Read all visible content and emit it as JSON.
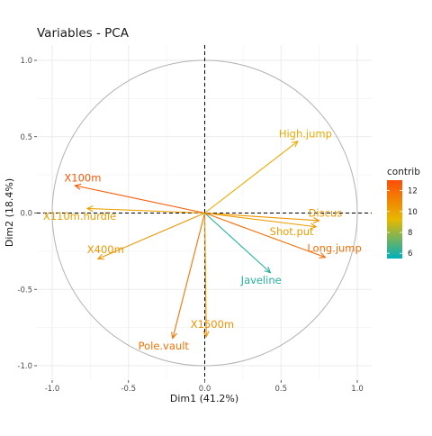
{
  "chart_data": {
    "type": "scatter",
    "subtype": "pca-variable-correlation-circle",
    "title": "Variables - PCA",
    "xlabel": "Dim1 (41.2%)",
    "ylabel": "Dim2 (18.4%)",
    "xlim": [
      -1.1,
      1.1
    ],
    "ylim": [
      -1.1,
      1.1
    ],
    "x_ticks": [
      -1.0,
      -0.5,
      0.0,
      0.5,
      1.0
    ],
    "x_tick_labels": [
      "-1.0",
      "-0.5",
      "0.0",
      "0.5",
      "1.0"
    ],
    "y_ticks": [
      -1.0,
      -0.5,
      0.0,
      0.5,
      1.0
    ],
    "y_tick_labels": [
      "-1.0",
      "-0.5",
      "0.0",
      "0.5",
      "1.0"
    ],
    "grid": true,
    "unit_circle": true,
    "legend": {
      "title": "contrib",
      "position": "right",
      "range": [
        5.5,
        13
      ],
      "ticks": [
        6,
        8,
        10,
        12
      ],
      "tick_labels": [
        "6",
        "8",
        "10",
        "12"
      ],
      "colors": [
        "#00AFBB",
        "#E7B800",
        "#FC4E07"
      ]
    },
    "variables": [
      {
        "name": "X100m",
        "x": -0.85,
        "y": 0.18,
        "contrib": 12.6
      },
      {
        "name": "Long.jump",
        "x": 0.79,
        "y": -0.29,
        "contrib": 11.9
      },
      {
        "name": "Shot.put",
        "x": 0.73,
        "y": -0.09,
        "contrib": 10.2
      },
      {
        "name": "High.jump",
        "x": 0.61,
        "y": 0.47,
        "contrib": 9.7
      },
      {
        "name": "X400m",
        "x": -0.7,
        "y": -0.3,
        "contrib": 10.4
      },
      {
        "name": "X110m.hurdle",
        "x": -0.77,
        "y": 0.03,
        "contrib": 10.1
      },
      {
        "name": "Discus",
        "x": 0.75,
        "y": -0.05,
        "contrib": 10.4
      },
      {
        "name": "Pole.vault",
        "x": -0.21,
        "y": -0.82,
        "contrib": 11.7
      },
      {
        "name": "Javeline",
        "x": 0.43,
        "y": -0.39,
        "contrib": 6.1
      },
      {
        "name": "X1500m",
        "x": 0.01,
        "y": -0.81,
        "contrib": 10.6
      }
    ],
    "labels": [
      {
        "name": "X100m",
        "lx": -0.8,
        "ly": 0.23,
        "anchor": "middle"
      },
      {
        "name": "Long.jump",
        "lx": 0.85,
        "ly": -0.23,
        "anchor": "middle"
      },
      {
        "name": "Shot.put",
        "lx": 0.57,
        "ly": -0.12,
        "anchor": "middle"
      },
      {
        "name": "High.jump",
        "lx": 0.66,
        "ly": 0.52,
        "anchor": "middle"
      },
      {
        "name": "X400m",
        "lx": -0.65,
        "ly": -0.24,
        "anchor": "middle"
      },
      {
        "name": "X110m.hurdle",
        "lx": -0.82,
        "ly": -0.02,
        "anchor": "middle"
      },
      {
        "name": "Discus",
        "lx": 0.79,
        "ly": 0.0,
        "anchor": "middle"
      },
      {
        "name": "Pole.vault",
        "lx": -0.27,
        "ly": -0.87,
        "anchor": "middle"
      },
      {
        "name": "Javeline",
        "lx": 0.37,
        "ly": -0.44,
        "anchor": "middle"
      },
      {
        "name": "X1500m",
        "lx": 0.05,
        "ly": -0.73,
        "anchor": "middle"
      }
    ]
  }
}
